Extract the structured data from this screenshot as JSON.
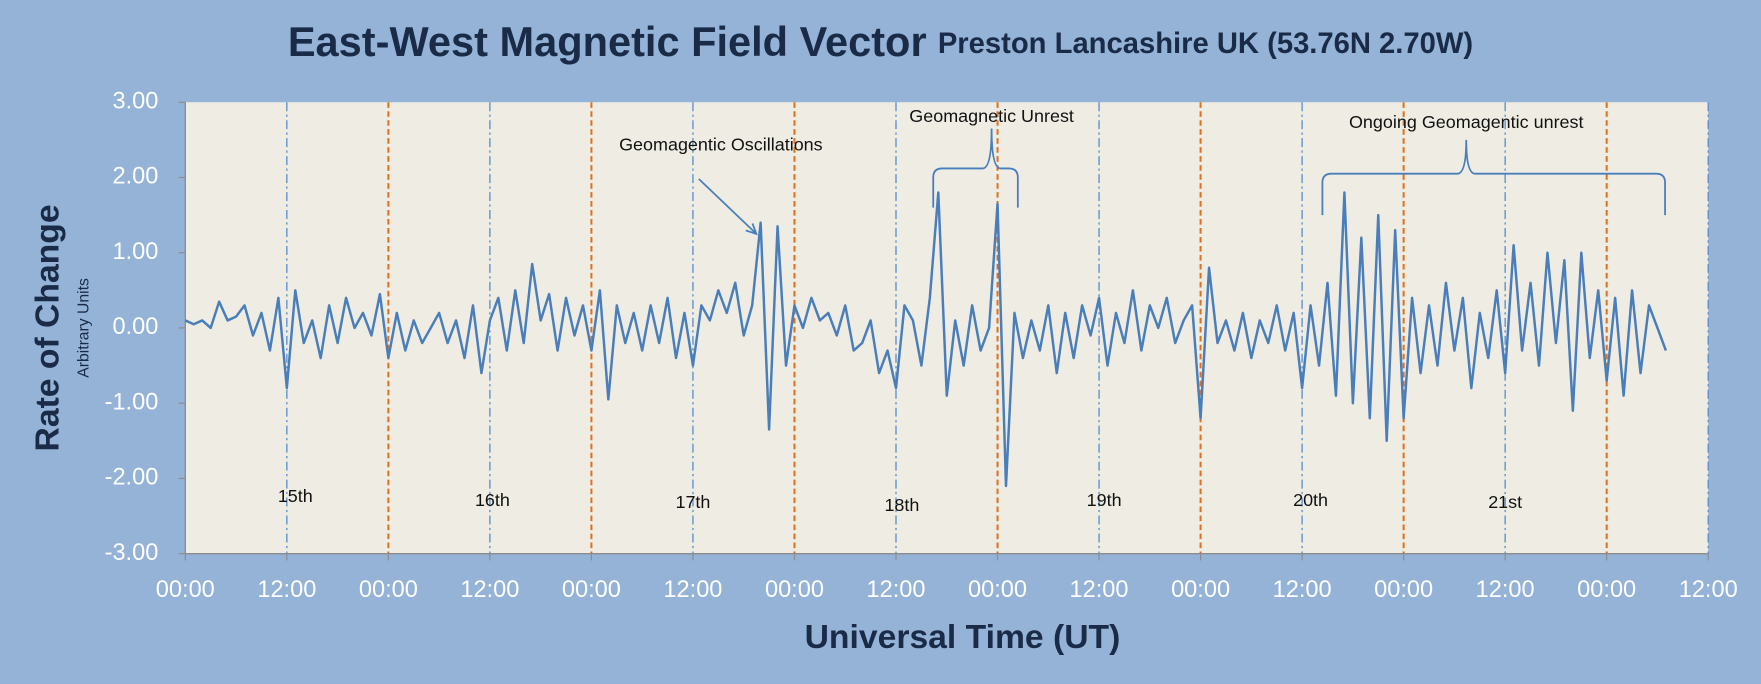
{
  "chart_data": {
    "type": "line",
    "title": "East-West Magnetic Field Vector",
    "subtitle": "Preston Lancashire UK (53.76N 2.70W)",
    "x_label": "Universal Time (UT)",
    "y_label": "Rate of Change",
    "y_sublabel": "Arbitrary Units",
    "xlim": [
      0,
      180
    ],
    "xticks": [
      {
        "value": 0,
        "label": "00:00"
      },
      {
        "value": 12,
        "label": "12:00"
      },
      {
        "value": 24,
        "label": "00:00"
      },
      {
        "value": 36,
        "label": "12:00"
      },
      {
        "value": 48,
        "label": "00:00"
      },
      {
        "value": 60,
        "label": "12:00"
      },
      {
        "value": 72,
        "label": "00:00"
      },
      {
        "value": 84,
        "label": "12:00"
      },
      {
        "value": 96,
        "label": "00:00"
      },
      {
        "value": 108,
        "label": "12:00"
      },
      {
        "value": 120,
        "label": "00:00"
      },
      {
        "value": 132,
        "label": "12:00"
      },
      {
        "value": 144,
        "label": "00:00"
      },
      {
        "value": 156,
        "label": "12:00"
      },
      {
        "value": 168,
        "label": "00:00"
      },
      {
        "value": 180,
        "label": "12:00"
      }
    ],
    "ylim": [
      -3,
      3
    ],
    "yticks": [
      {
        "value": 3,
        "label": "3.00"
      },
      {
        "value": 2,
        "label": "2.00"
      },
      {
        "value": 1,
        "label": "1.00"
      },
      {
        "value": 0,
        "label": "0.00"
      },
      {
        "value": -1,
        "label": "-1.00"
      },
      {
        "value": -2,
        "label": "-2.00"
      },
      {
        "value": -3,
        "label": "-3.00"
      }
    ],
    "vline_colors": {
      "midnight": "#e0701f",
      "noon": "#5b8fd0"
    },
    "x": [
      0,
      1,
      2,
      3,
      4,
      5,
      6,
      7,
      8,
      9,
      10,
      11,
      12,
      13,
      14,
      15,
      16,
      17,
      18,
      19,
      20,
      21,
      22,
      23,
      24,
      25,
      26,
      27,
      28,
      29,
      30,
      31,
      32,
      33,
      34,
      35,
      36,
      37,
      38,
      39,
      40,
      41,
      42,
      43,
      44,
      45,
      46,
      47,
      48,
      49,
      50,
      51,
      52,
      53,
      54,
      55,
      56,
      57,
      58,
      59,
      60,
      61,
      62,
      63,
      64,
      65,
      66,
      67,
      68,
      69,
      70,
      71,
      72,
      73,
      74,
      75,
      76,
      77,
      78,
      79,
      80,
      81,
      82,
      83,
      84,
      85,
      86,
      87,
      88,
      89,
      90,
      91,
      92,
      93,
      94,
      95,
      96,
      97,
      98,
      99,
      100,
      101,
      102,
      103,
      104,
      105,
      106,
      107,
      108,
      109,
      110,
      111,
      112,
      113,
      114,
      115,
      116,
      117,
      118,
      119,
      120,
      121,
      122,
      123,
      124,
      125,
      126,
      127,
      128,
      129,
      130,
      131,
      132,
      133,
      134,
      135,
      136,
      137,
      138,
      139,
      140,
      141,
      142,
      143,
      144,
      145,
      146,
      147,
      148,
      149,
      150,
      151,
      152,
      153,
      154,
      155,
      156,
      157,
      158,
      159,
      160,
      161,
      162,
      163,
      164,
      165,
      166,
      167,
      168,
      169,
      170,
      171,
      172,
      173,
      174,
      175
    ],
    "series": [
      {
        "name": "East-West",
        "color": "#4a7ebb",
        "values": [
          0.1,
          0.05,
          0.1,
          0,
          0.35,
          0.1,
          0.15,
          0.3,
          -0.1,
          0.2,
          -0.3,
          0.4,
          -0.8,
          0.5,
          -0.2,
          0.1,
          -0.4,
          0.3,
          -0.2,
          0.4,
          0,
          0.2,
          -0.1,
          0.45,
          -0.4,
          0.2,
          -0.3,
          0.1,
          -0.2,
          0,
          0.2,
          -0.2,
          0.1,
          -0.4,
          0.3,
          -0.6,
          0.1,
          0.4,
          -0.3,
          0.5,
          -0.2,
          0.85,
          0.1,
          0.45,
          -0.3,
          0.4,
          -0.1,
          0.3,
          -0.3,
          0.5,
          -0.95,
          0.3,
          -0.2,
          0.2,
          -0.3,
          0.3,
          -0.2,
          0.4,
          -0.4,
          0.2,
          -0.5,
          0.3,
          0.1,
          0.5,
          0.2,
          0.6,
          -0.1,
          0.3,
          1.4,
          -1.35,
          1.35,
          -0.5,
          0.3,
          0,
          0.4,
          0.1,
          0.2,
          -0.1,
          0.3,
          -0.3,
          -0.2,
          0.1,
          -0.6,
          -0.3,
          -0.8,
          0.3,
          0.1,
          -0.5,
          0.4,
          1.8,
          -0.9,
          0.1,
          -0.5,
          0.3,
          -0.3,
          0,
          1.65,
          -2.1,
          0.2,
          -0.4,
          0.1,
          -0.3,
          0.3,
          -0.6,
          0.2,
          -0.4,
          0.3,
          -0.1,
          0.4,
          -0.5,
          0.2,
          -0.2,
          0.5,
          -0.3,
          0.3,
          0,
          0.4,
          -0.2,
          0.1,
          0.3,
          -1.2,
          0.8,
          -0.2,
          0.1,
          -0.3,
          0.2,
          -0.4,
          0.1,
          -0.2,
          0.3,
          -0.3,
          0.2,
          -0.8,
          0.3,
          -0.5,
          0.6,
          -0.9,
          1.8,
          -1,
          1.2,
          -1.2,
          1.5,
          -1.5,
          1.3,
          -1.2,
          0.4,
          -0.6,
          0.3,
          -0.5,
          0.6,
          -0.3,
          0.4,
          -0.8,
          0.2,
          -0.4,
          0.5,
          -0.6,
          1.1,
          -0.3,
          0.6,
          -0.5,
          1,
          -0.2,
          0.9,
          -1.1,
          1,
          -0.4,
          0.5,
          -0.7,
          0.4,
          -0.9,
          0.5,
          -0.6,
          0.3,
          0,
          -0.3
        ]
      }
    ],
    "day_labels": [
      {
        "text": "15th",
        "x": 13,
        "y": -2.25
      },
      {
        "text": "16th",
        "x": 36.3,
        "y": -2.3
      },
      {
        "text": "17th",
        "x": 60,
        "y": -2.33
      },
      {
        "text": "18th",
        "x": 84.7,
        "y": -2.37
      },
      {
        "text": "19th",
        "x": 108.6,
        "y": -2.3
      },
      {
        "text": "20th",
        "x": 133,
        "y": -2.3
      },
      {
        "text": "21st",
        "x": 156,
        "y": -2.33
      }
    ],
    "annotations": [
      {
        "text": "Geomagentic Oscillations",
        "x": 63.3,
        "y": 2.42,
        "arrow": [
          60.7,
          1.98,
          67.5,
          1.25
        ]
      },
      {
        "text": "Geomagnetic Unrest",
        "x": 95.3,
        "y": 2.8,
        "span": [
          88.4,
          98.4
        ],
        "span_y": [
          1.6,
          2.12,
          2.65
        ]
      },
      {
        "text": "Ongoing Geomagentic unrest",
        "x": 151.4,
        "y": 2.72,
        "span": [
          134.4,
          174.9
        ],
        "span_y": [
          1.5,
          2.05,
          2.5
        ]
      }
    ]
  }
}
